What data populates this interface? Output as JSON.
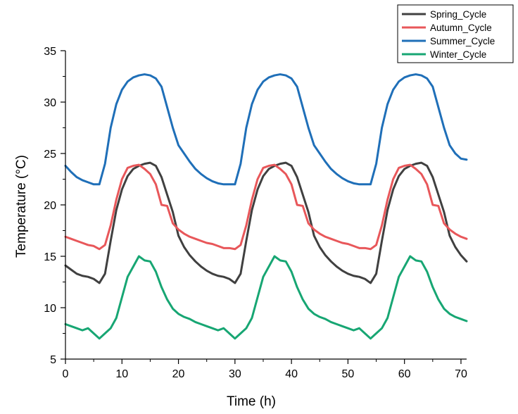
{
  "chart_data": {
    "type": "line",
    "title": "",
    "xlabel": "Time (h)",
    "ylabel": "Temperature (°C)",
    "xlim": [
      0,
      71
    ],
    "ylim": [
      5,
      35
    ],
    "xticks": [
      0,
      10,
      20,
      30,
      40,
      50,
      60,
      70
    ],
    "yticks": [
      5,
      10,
      15,
      20,
      25,
      30,
      35
    ],
    "grid": false,
    "legend_position": "top-right",
    "x": [
      0,
      1,
      2,
      3,
      4,
      5,
      6,
      7,
      8,
      9,
      10,
      11,
      12,
      13,
      14,
      15,
      16,
      17,
      18,
      19,
      20,
      21,
      22,
      23,
      24,
      25,
      26,
      27,
      28,
      29,
      30,
      31,
      32,
      33,
      34,
      35,
      36,
      37,
      38,
      39,
      40,
      41,
      42,
      43,
      44,
      45,
      46,
      47,
      48,
      49,
      50,
      51,
      52,
      53,
      54,
      55,
      56,
      57,
      58,
      59,
      60,
      61,
      62,
      63,
      64,
      65,
      66,
      67,
      68,
      69,
      70,
      71
    ],
    "series": [
      {
        "name": "Spring_Cycle",
        "color": "#404040",
        "values": [
          14.1,
          13.7,
          13.3,
          13.1,
          13.0,
          12.8,
          12.4,
          13.3,
          16.5,
          19.5,
          21.5,
          22.8,
          23.5,
          23.8,
          24.0,
          24.1,
          23.8,
          22.7,
          21.0,
          19.3,
          17.0,
          15.9,
          15.1,
          14.5,
          14.0,
          13.6,
          13.3,
          13.1,
          13.0,
          12.8,
          12.4,
          13.3,
          16.5,
          19.5,
          21.5,
          22.8,
          23.5,
          23.8,
          24.0,
          24.1,
          23.8,
          22.7,
          21.0,
          19.3,
          17.0,
          15.9,
          15.1,
          14.5,
          14.0,
          13.6,
          13.3,
          13.1,
          13.0,
          12.8,
          12.4,
          13.3,
          16.5,
          19.5,
          21.5,
          22.8,
          23.5,
          23.8,
          24.0,
          24.1,
          23.8,
          22.7,
          21.0,
          19.3,
          17.0,
          15.9,
          15.1,
          14.5
        ]
      },
      {
        "name": "Autumn_Cycle",
        "color": "#e8575a",
        "values": [
          16.9,
          16.7,
          16.5,
          16.3,
          16.1,
          16.0,
          15.7,
          16.1,
          18.0,
          20.5,
          22.5,
          23.6,
          23.8,
          23.9,
          23.5,
          23.0,
          22.0,
          20.0,
          19.9,
          18.2,
          17.6,
          17.2,
          16.9,
          16.7,
          16.5,
          16.3,
          16.2,
          16.0,
          15.8,
          15.8,
          15.7,
          16.1,
          18.0,
          20.5,
          22.5,
          23.6,
          23.8,
          23.9,
          23.5,
          23.0,
          22.0,
          20.0,
          19.9,
          18.2,
          17.6,
          17.2,
          16.9,
          16.7,
          16.5,
          16.3,
          16.2,
          16.0,
          15.8,
          15.8,
          15.7,
          16.1,
          18.0,
          20.5,
          22.5,
          23.6,
          23.8,
          23.9,
          23.5,
          23.0,
          22.0,
          20.0,
          19.9,
          18.2,
          17.6,
          17.2,
          16.9,
          16.7
        ]
      },
      {
        "name": "Summer_Cycle",
        "color": "#1f6fb8",
        "values": [
          23.8,
          23.2,
          22.7,
          22.4,
          22.2,
          22.0,
          22.0,
          24.0,
          27.5,
          29.8,
          31.2,
          32.0,
          32.4,
          32.6,
          32.7,
          32.6,
          32.3,
          31.5,
          29.5,
          27.5,
          25.8,
          25.0,
          24.2,
          23.5,
          23.0,
          22.6,
          22.3,
          22.1,
          22.0,
          22.0,
          22.0,
          24.0,
          27.5,
          29.8,
          31.2,
          32.0,
          32.4,
          32.6,
          32.7,
          32.6,
          32.3,
          31.5,
          29.5,
          27.5,
          25.8,
          25.0,
          24.2,
          23.5,
          23.0,
          22.6,
          22.3,
          22.1,
          22.0,
          22.0,
          22.0,
          24.0,
          27.5,
          29.8,
          31.2,
          32.0,
          32.4,
          32.6,
          32.7,
          32.6,
          32.3,
          31.5,
          29.5,
          27.5,
          25.8,
          25.0,
          24.5,
          24.4
        ]
      },
      {
        "name": "Winter_Cycle",
        "color": "#17a673",
        "values": [
          8.4,
          8.2,
          8.0,
          7.8,
          8.0,
          7.5,
          7.0,
          7.5,
          8.0,
          9.0,
          11.0,
          13.0,
          14.0,
          15.0,
          14.6,
          14.5,
          13.5,
          12.0,
          10.8,
          9.9,
          9.4,
          9.1,
          8.9,
          8.6,
          8.4,
          8.2,
          8.0,
          7.8,
          8.0,
          7.5,
          7.0,
          7.5,
          8.0,
          9.0,
          11.0,
          13.0,
          14.0,
          15.0,
          14.6,
          14.5,
          13.5,
          12.0,
          10.8,
          9.9,
          9.4,
          9.1,
          8.9,
          8.6,
          8.4,
          8.2,
          8.0,
          7.8,
          8.0,
          7.5,
          7.0,
          7.5,
          8.0,
          9.0,
          11.0,
          13.0,
          14.0,
          15.0,
          14.6,
          14.5,
          13.5,
          12.0,
          10.8,
          9.9,
          9.4,
          9.1,
          8.9,
          8.7
        ]
      }
    ]
  }
}
